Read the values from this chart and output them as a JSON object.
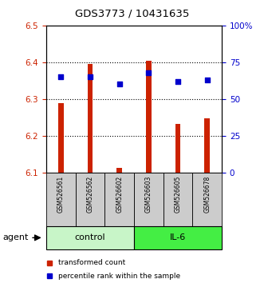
{
  "title": "GDS3773 / 10431635",
  "samples": [
    "GSM526561",
    "GSM526562",
    "GSM526602",
    "GSM526603",
    "GSM526605",
    "GSM526678"
  ],
  "red_values": [
    6.29,
    6.395,
    6.112,
    6.403,
    6.232,
    6.248
  ],
  "blue_values": [
    65,
    65,
    60,
    68,
    62,
    63
  ],
  "groups": [
    {
      "label": "control",
      "start": 0,
      "end": 3,
      "color_light": "#c8f5c8",
      "color_dark": "#44dd44"
    },
    {
      "label": "IL-6",
      "start": 3,
      "end": 6,
      "color_light": "#44dd44",
      "color_dark": "#44dd44"
    }
  ],
  "ylim_left": [
    6.1,
    6.5
  ],
  "ylim_right": [
    0,
    100
  ],
  "yticks_left": [
    6.1,
    6.2,
    6.3,
    6.4,
    6.5
  ],
  "yticks_right": [
    0,
    25,
    50,
    75,
    100
  ],
  "ytick_labels_right": [
    "0",
    "25",
    "50",
    "75",
    "100%"
  ],
  "bar_color": "#cc2200",
  "dot_color": "#0000cc",
  "bar_width": 0.18,
  "bar_bottom": 6.1,
  "legend_red": "transformed count",
  "legend_blue": "percentile rank within the sample",
  "agent_label": "agent",
  "sample_box_color": "#cccccc",
  "tick_color_left": "#cc2200",
  "tick_color_right": "#0000cc"
}
